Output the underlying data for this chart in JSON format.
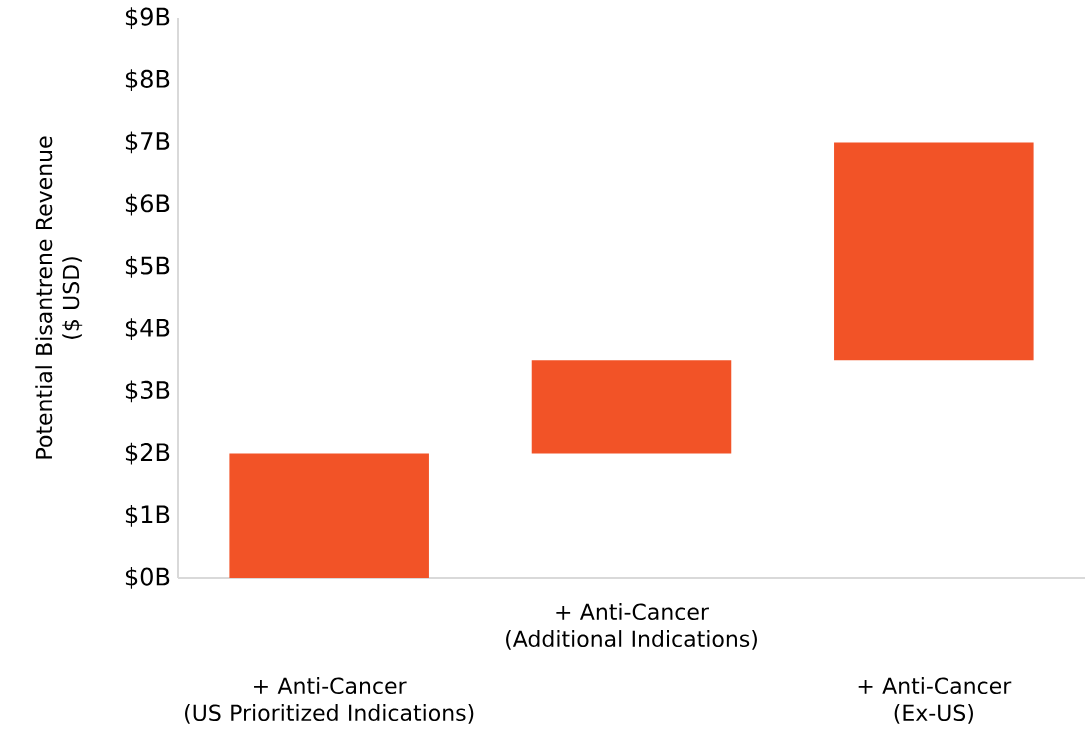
{
  "chart_data": {
    "type": "bar",
    "ylabel": "Potential Bisantrene Revenue\n($ USD)",
    "categories": [
      "+ Anti-Cancer\n(US Prioritized Indications)",
      "+ Anti-Cancer\n(Additional Indications)",
      "+ Anti-Cancer\n(Ex-US)"
    ],
    "values": [
      2,
      1.5,
      3.5
    ],
    "base": [
      0,
      2,
      3.5
    ],
    "color": "#f25327",
    "ylim": [
      0,
      9
    ],
    "yticks": [
      {
        "value": 0,
        "label": "$0B"
      },
      {
        "value": 1,
        "label": "$1B"
      },
      {
        "value": 2,
        "label": "$2B"
      },
      {
        "value": 3,
        "label": "$3B"
      },
      {
        "value": 4,
        "label": "$4B"
      },
      {
        "value": 5,
        "label": "$5B"
      },
      {
        "value": 6,
        "label": "$6B"
      },
      {
        "value": 7,
        "label": "$7B"
      },
      {
        "value": 8,
        "label": "$8B"
      },
      {
        "value": 9,
        "label": "$9B"
      }
    ],
    "grid": false
  }
}
